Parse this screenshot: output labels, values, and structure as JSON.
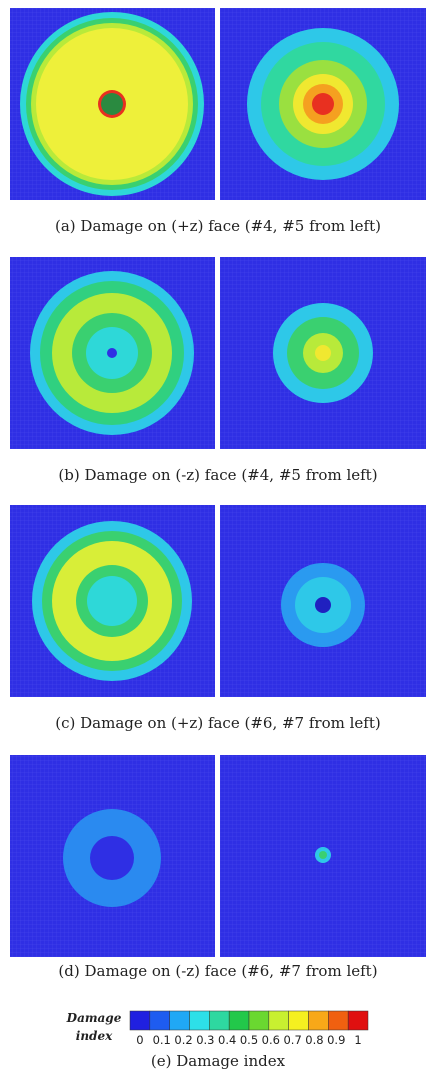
{
  "captions": {
    "a": "(a) Damage on (+z) face (#4, #5 from left)",
    "b": "(b) Damage on (-z) face (#4, #5 from left)",
    "c": "(c) Damage on (+z) face (#6, #7 from left)",
    "d": "(d) Damage on (-z) face (#6, #7 from left)",
    "e": "(e) Damage index"
  },
  "colorbar": {
    "title": [
      "Damage",
      "index"
    ],
    "ticks": [
      0,
      0.1,
      0.2,
      0.3,
      0.4,
      0.5,
      0.6,
      0.7,
      0.8,
      0.9,
      1
    ],
    "colors": [
      "#2020e0",
      "#1e5cf0",
      "#20a8f5",
      "#2de0e8",
      "#2ed8a0",
      "#22c84a",
      "#6ad830",
      "#c8f030",
      "#f5f020",
      "#f8a818",
      "#f06010",
      "#e01010"
    ]
  }
}
